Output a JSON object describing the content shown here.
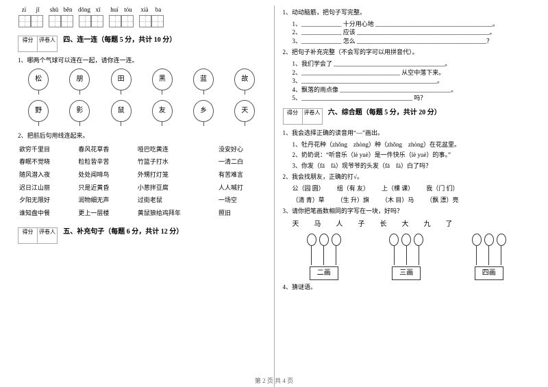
{
  "pinyin": {
    "groups": [
      [
        "zì",
        "jǐ"
      ],
      [
        "shū",
        "běn"
      ],
      [
        "dōng",
        "xī"
      ],
      [
        "huí",
        "tóu"
      ],
      [
        "xià",
        "ba"
      ]
    ]
  },
  "left": {
    "score_a": "得分",
    "score_b": "评卷人",
    "sec4_title": "四、连一连（每题 5 分，共计 10 分）",
    "q1": "1、哪两个气球可以连在一起，请你连一连。",
    "balloons_top": [
      "松",
      "朋",
      "田",
      "黑",
      "蓝",
      "故"
    ],
    "balloons_bot": [
      "野",
      "影",
      "鼠",
      "友",
      "乡",
      "天"
    ],
    "q2": "2、把前后句用线连起来。",
    "matches": [
      [
        "欲穷千里目",
        "春风花草香",
        "哑巴吃黄连",
        "没安好心"
      ],
      [
        "春眠不觉晓",
        "粒粒皆辛苦",
        "竹篮子打水",
        "一清二白"
      ],
      [
        "随风潜入夜",
        "处处闻啼鸟",
        "外甥打灯笼",
        "有苦难言"
      ],
      [
        "迟日江山丽",
        "只是近黄昏",
        "小葱拌豆腐",
        "人人喊打"
      ],
      [
        "夕阳无限好",
        "润物细无声",
        "过街老鼠",
        "一场空"
      ],
      [
        "谁知盘中餐",
        "更上一层楼",
        "黄鼠狼给鸡拜年",
        "照旧"
      ]
    ],
    "sec5_title": "五、补充句子（每题 6 分，共计 12 分）"
  },
  "right": {
    "q1": "1、动动脑筋，把句子写完整。",
    "q1_1": "1、_____________ 十分用心地 ______________________________________。",
    "q1_2": "2、_____________ 应该 ___________________________________________。",
    "q1_3": "3、_____________ 怎么 __________________________________________？",
    "q2": "2、把句子补充完整（不会写的字可以用拼音代）。",
    "q2_1": "1、我们学会了 ____________________________________。",
    "q2_2": "2、________________________________ 从空中落下来。",
    "q2_3": "3、____________________________________________。",
    "q2_4": "4、飘落的雨点像 ____________________________________。",
    "q2_5": "5、____________________________________ 吗？",
    "score_a": "得分",
    "score_b": "评卷人",
    "sec6_title": "六、综合题（每题 5 分，共计 20 分）",
    "c1": "1、我会选择正确的读音用“—”画出。",
    "c1_1": "1、牡丹花种（zhǒng　zhòng）种（zhǒng　zhòng）在花盆里。",
    "c1_2": "2、奶奶说：“听音乐（lè  yuè）是一件快乐（lè  yuè）的事。”",
    "c1_3": "3、你发（fā　fà）现爷爷的头发（fā　fà）白了吗？",
    "c2": "2、我会找朋友，正确的打√。",
    "opts": [
      "公（园  圆）",
      "组（有  友）",
      "上（棵  课）",
      "我（门  们）"
    ],
    "opts2": [
      "（清  青）草",
      "（生  升）旗",
      "（木  目）马",
      "（飘  漂）亮"
    ],
    "c3": "3、请你把笔画数相同的字写在一块，好吗？",
    "chars": [
      "天",
      "马",
      "人",
      "子",
      "长",
      "大",
      "九",
      "了"
    ],
    "boxes": [
      "二画",
      "三画",
      "四画"
    ],
    "c4": "4、猜谜语。"
  },
  "footer": "第 2 页  共 4 页"
}
